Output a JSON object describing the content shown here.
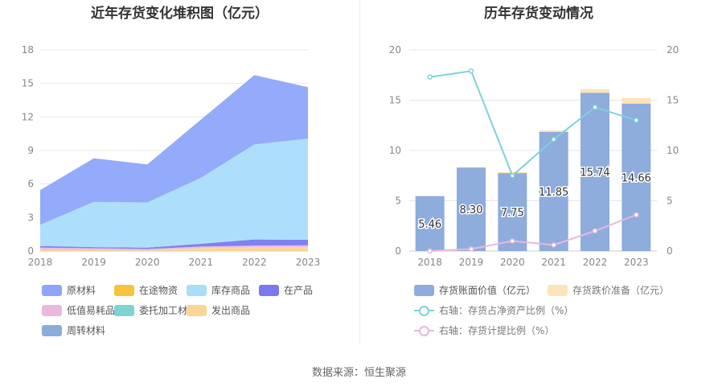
{
  "source_text": "数据来源：恒生聚源",
  "chart_data": [
    {
      "type": "area",
      "stacked": true,
      "title": "近年存货变化堆积图（亿元）",
      "categories": [
        "2018",
        "2019",
        "2020",
        "2021",
        "2022",
        "2023"
      ],
      "yticks": [
        "0",
        "3",
        "6",
        "9",
        "12",
        "15",
        "18"
      ],
      "ylim": [
        0,
        18
      ],
      "grid": true,
      "legend_position": "bottom",
      "series": [
        {
          "name": "原材料",
          "color": "#8ea5fa",
          "values": [
            3.1,
            3.9,
            3.4,
            5.2,
            6.2,
            4.6
          ]
        },
        {
          "name": "在途物资",
          "color": "#f8c33c",
          "values": [
            0.02,
            0.02,
            0.02,
            0.02,
            0.02,
            0.02
          ]
        },
        {
          "name": "库存商品",
          "color": "#a9ddfa",
          "values": [
            1.9,
            4.05,
            4.05,
            5.9,
            8.5,
            9.05
          ]
        },
        {
          "name": "在产品",
          "color": "#7b79ee",
          "values": [
            0.15,
            0.1,
            0.12,
            0.25,
            0.55,
            0.5
          ]
        },
        {
          "name": "低值易耗品",
          "color": "#e9b9dc",
          "values": [
            0.2,
            0.15,
            0.12,
            0.12,
            0.15,
            0.15
          ]
        },
        {
          "name": "委托加工材料",
          "color": "#7ed3d3",
          "values": [
            0.0,
            0.0,
            0.0,
            0.0,
            0.0,
            0.0
          ]
        },
        {
          "name": "发出商品",
          "color": "#fbd596",
          "values": [
            0.08,
            0.08,
            0.04,
            0.26,
            0.32,
            0.34
          ]
        },
        {
          "name": "周转材料",
          "color": "#8bacdb",
          "values": [
            0.0,
            0.0,
            0.0,
            0.0,
            0.0,
            0.0
          ]
        }
      ]
    },
    {
      "type": "bar",
      "stacked": true,
      "title": "历年存货变动情况",
      "categories": [
        "2018",
        "2019",
        "2020",
        "2021",
        "2022",
        "2023"
      ],
      "yticks_left": [
        "0",
        "5",
        "10",
        "15",
        "20"
      ],
      "yticks_right": [
        "0",
        "5",
        "10",
        "15",
        "20"
      ],
      "ylim_left": [
        0,
        20
      ],
      "ylim_right": [
        0,
        20
      ],
      "grid": true,
      "legend_position": "bottom",
      "series": [
        {
          "name": "存货账面价值（亿元）",
          "color": "#8eacdc",
          "axis": "left",
          "values": [
            5.46,
            8.3,
            7.75,
            11.85,
            15.74,
            14.66
          ],
          "labels": [
            "5.46",
            "8.30",
            "7.75",
            "11.85",
            "15.74",
            "14.66"
          ]
        },
        {
          "name": "存货跌价准备（亿元）",
          "color": "#fde3b8",
          "axis": "left",
          "values": [
            0.0,
            0.05,
            0.1,
            0.15,
            0.35,
            0.55
          ]
        },
        {
          "name": "右轴：存货占净资产比例（%）",
          "color": "#7ed2d9",
          "type": "line",
          "axis": "right",
          "values": [
            17.3,
            17.9,
            7.5,
            11.1,
            14.3,
            13.0
          ]
        },
        {
          "name": "右轴：存货计提比例（%）",
          "color": "#e8b9dc",
          "type": "line",
          "axis": "right",
          "values": [
            0.0,
            0.2,
            1.0,
            0.6,
            2.0,
            3.6
          ]
        }
      ]
    }
  ]
}
